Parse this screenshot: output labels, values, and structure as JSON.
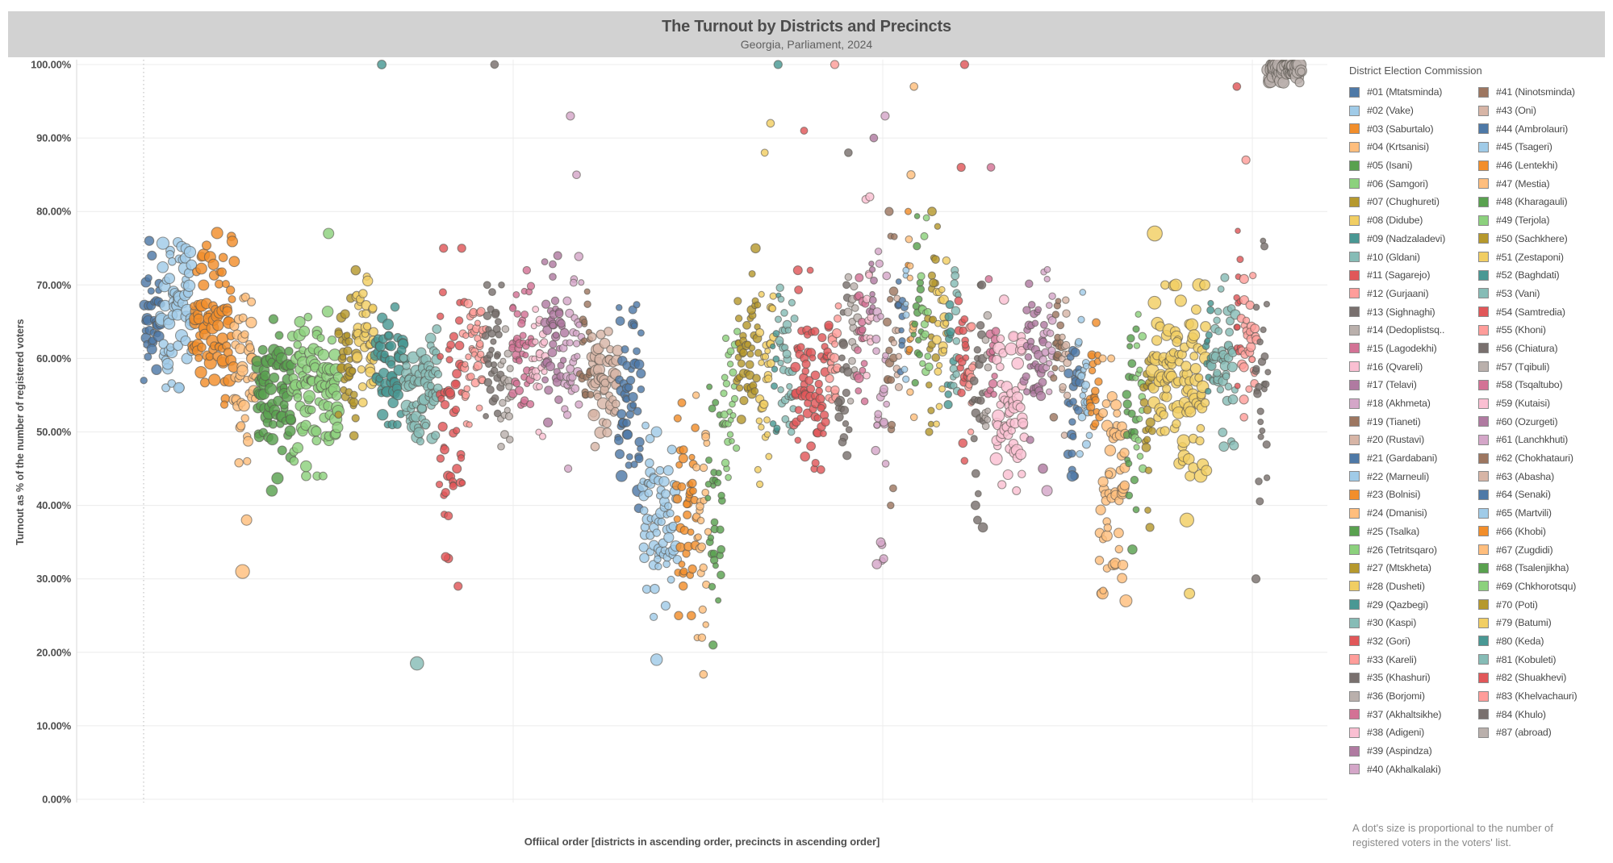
{
  "header": {
    "title": "The Turnout by Districts and Precincts",
    "subtitle": "Georgia, Parliament, 2024"
  },
  "y_axis": {
    "title": "Turnout as % of the number of registered voters",
    "ticks": [
      "100.00%",
      "90.00%",
      "80.00%",
      "70.00%",
      "60.00%",
      "50.00%",
      "40.00%",
      "30.00%",
      "20.00%",
      "10.00%",
      "0.00%"
    ]
  },
  "x_axis": {
    "title": "Offiical order [districts in ascending order, precincts in ascending order]"
  },
  "legend": {
    "title": "District Election Commission",
    "footnote": "A dot's size is proportional to the number of registered voters in the voters' list."
  },
  "palette": [
    "#4E79A7",
    "#A0CBE8",
    "#F28E2B",
    "#FFBE7D",
    "#59A14F",
    "#8CD17D",
    "#B6992D",
    "#F1CE63",
    "#499894",
    "#86BCB6",
    "#E15759",
    "#FF9D9A",
    "#79706E",
    "#BAB0AC",
    "#D37295",
    "#FABFD2",
    "#B07AA1",
    "#D4A6C8",
    "#9D7660",
    "#D7B5A6"
  ],
  "chart_data": {
    "type": "scatter",
    "title": "The Turnout by Districts and Precincts",
    "subtitle": "Georgia, Parliament, 2024",
    "xlabel": "Offiical order [districts in ascending order, precincts in ascending order]",
    "ylabel": "Turnout as % of the number of registered voters",
    "ylim": [
      0,
      100
    ],
    "y_tick_step": 10,
    "grid": true,
    "legend_position": "right",
    "size_note": "A dot's size is proportional to the number of registered voters in the voters' list.",
    "x_encoding": "precincts in official ascending order, grouped by district; one bubble per precinct",
    "districts": [
      {
        "label": "#01 (Mtatsminda)",
        "precincts": 35,
        "mean": 66,
        "sd": 4,
        "min": 57,
        "max": 76,
        "size": 0.55,
        "outliers": []
      },
      {
        "label": "#02 (Vake)",
        "precincts": 65,
        "mean": 67,
        "sd": 4.5,
        "min": 56,
        "max": 78,
        "size": 0.7,
        "outliers": [
          [
            56,
            0.5
          ]
        ]
      },
      {
        "label": "#03 (Saburtalo)",
        "precincts": 85,
        "mean": 65,
        "sd": 5,
        "min": 53,
        "max": 78,
        "size": 0.7,
        "outliers": []
      },
      {
        "label": "#04 (Krtsanisi)",
        "precincts": 45,
        "mean": 58,
        "sd": 6,
        "min": 40,
        "max": 72,
        "size": 0.6,
        "outliers": [
          [
            31,
            0.8
          ],
          [
            38,
            0.5
          ]
        ]
      },
      {
        "label": "#05 (Isani)",
        "precincts": 75,
        "mean": 55,
        "sd": 5,
        "min": 42,
        "max": 66,
        "size": 0.65,
        "outliers": []
      },
      {
        "label": "#06 (Samgori)",
        "precincts": 95,
        "mean": 56,
        "sd": 5,
        "min": 44,
        "max": 70,
        "size": 0.7,
        "outliers": [
          [
            77,
            0.5
          ]
        ]
      },
      {
        "label": "#07 (Chughureti)",
        "precincts": 35,
        "mean": 58,
        "sd": 4.5,
        "min": 48,
        "max": 69,
        "size": 0.5,
        "outliers": [
          [
            72,
            0.4
          ]
        ]
      },
      {
        "label": "#08 (Didube)",
        "precincts": 40,
        "mean": 63,
        "sd": 4,
        "min": 54,
        "max": 73,
        "size": 0.55,
        "outliers": []
      },
      {
        "label": "#09 (Nadzaladevi)",
        "precincts": 60,
        "mean": 59,
        "sd": 3.5,
        "min": 51,
        "max": 67,
        "size": 0.6,
        "outliers": [
          [
            100,
            0.35
          ]
        ]
      },
      {
        "label": "#10 (Gldani)",
        "precincts": 70,
        "mean": 56,
        "sd": 3.5,
        "min": 47,
        "max": 64,
        "size": 0.65,
        "outliers": [
          [
            18.5,
            0.75
          ]
        ]
      },
      {
        "label": "#11 (Sagarejo)",
        "precincts": 50,
        "mean": 55,
        "sd": 8,
        "min": 29,
        "max": 75,
        "size": 0.45,
        "outliers": [
          [
            29,
            0.3
          ],
          [
            33,
            0.35
          ],
          [
            75,
            0.3
          ]
        ]
      },
      {
        "label": "#12 (Gurjaani)",
        "precincts": 45,
        "mean": 60,
        "sd": 5,
        "min": 48,
        "max": 72,
        "size": 0.4,
        "outliers": []
      },
      {
        "label": "#13 (Sighnaghi)",
        "precincts": 32,
        "mean": 61,
        "sd": 4.5,
        "min": 50,
        "max": 70,
        "size": 0.35,
        "outliers": [
          [
            100,
            0.25
          ]
        ]
      },
      {
        "label": "#14 (Dedoplistsq..",
        "precincts": 22,
        "mean": 56,
        "sd": 4,
        "min": 48,
        "max": 64,
        "size": 0.35,
        "outliers": []
      },
      {
        "label": "#15 (Lagodekhi)",
        "precincts": 42,
        "mean": 60,
        "sd": 5,
        "min": 48,
        "max": 72,
        "size": 0.4,
        "outliers": []
      },
      {
        "label": "#16 (Qvareli)",
        "precincts": 25,
        "mean": 59,
        "sd": 4.5,
        "min": 48,
        "max": 68,
        "size": 0.35,
        "outliers": []
      },
      {
        "label": "#17 (Telavi)",
        "precincts": 40,
        "mean": 62,
        "sd": 5,
        "min": 50,
        "max": 74,
        "size": 0.45,
        "outliers": []
      },
      {
        "label": "#18 (Akhmeta)",
        "precincts": 35,
        "mean": 62,
        "sd": 6,
        "min": 45,
        "max": 78,
        "size": 0.4,
        "outliers": [
          [
            93,
            0.3
          ],
          [
            85,
            0.25
          ]
        ]
      },
      {
        "label": "#19 (Tianeti)",
        "precincts": 20,
        "mean": 60,
        "sd": 5,
        "min": 48,
        "max": 70,
        "size": 0.3,
        "outliers": []
      },
      {
        "label": "#20 (Rustavi)",
        "precincts": 55,
        "mean": 57,
        "sd": 4,
        "min": 48,
        "max": 66,
        "size": 0.65,
        "outliers": []
      },
      {
        "label": "#21 (Gardabani)",
        "precincts": 50,
        "mean": 55,
        "sd": 6,
        "min": 38,
        "max": 68,
        "size": 0.5,
        "outliers": [
          [
            42,
            0.6
          ],
          [
            44,
            0.55
          ]
        ]
      },
      {
        "label": "#22 (Marneuli)",
        "precincts": 70,
        "mean": 38,
        "sd": 6,
        "min": 24,
        "max": 52,
        "size": 0.55,
        "outliers": [
          [
            19,
            0.6
          ],
          [
            50,
            0.5
          ]
        ]
      },
      {
        "label": "#23 (Bolnisi)",
        "precincts": 40,
        "mean": 40,
        "sd": 7,
        "min": 25,
        "max": 55,
        "size": 0.45,
        "outliers": []
      },
      {
        "label": "#24 (Dmanisi)",
        "precincts": 25,
        "mean": 38,
        "sd": 8,
        "min": 22,
        "max": 55,
        "size": 0.4,
        "outliers": [
          [
            17,
            0.25
          ]
        ]
      },
      {
        "label": "#25 (Tsalka)",
        "precincts": 30,
        "mean": 42,
        "sd": 8,
        "min": 25,
        "max": 60,
        "size": 0.35,
        "outliers": [
          [
            21,
            0.3
          ]
        ]
      },
      {
        "label": "#26 (Tetritsqaro)",
        "precincts": 28,
        "mean": 53,
        "sd": 6,
        "min": 40,
        "max": 66,
        "size": 0.35,
        "outliers": []
      },
      {
        "label": "#27 (Mtskheta)",
        "precincts": 45,
        "mean": 62,
        "sd": 5,
        "min": 50,
        "max": 74,
        "size": 0.45,
        "outliers": [
          [
            75,
            0.4
          ]
        ]
      },
      {
        "label": "#28 (Dusheti)",
        "precincts": 32,
        "mean": 57,
        "sd": 7,
        "min": 40,
        "max": 72,
        "size": 0.4,
        "outliers": [
          [
            92,
            0.25
          ],
          [
            88,
            0.2
          ]
        ]
      },
      {
        "label": "#29 (Qazbegi)",
        "precincts": 10,
        "mean": 58,
        "sd": 6,
        "min": 48,
        "max": 70,
        "size": 0.25,
        "outliers": [
          [
            100,
            0.3
          ]
        ]
      },
      {
        "label": "#30 (Kaspi)",
        "precincts": 32,
        "mean": 60,
        "sd": 4.5,
        "min": 50,
        "max": 70,
        "size": 0.4,
        "outliers": []
      },
      {
        "label": "#32 (Gori)",
        "precincts": 70,
        "mean": 58,
        "sd": 6,
        "min": 44,
        "max": 72,
        "size": 0.5,
        "outliers": [
          [
            91,
            0.2
          ]
        ]
      },
      {
        "label": "#33 (Kareli)",
        "precincts": 21,
        "mean": 59,
        "sd": 5,
        "min": 48,
        "max": 70,
        "size": 0.45,
        "outliers": [
          [
            100,
            0.3
          ]
        ]
      },
      {
        "label": "#35 (Khashuri)",
        "precincts": 21,
        "mean": 57,
        "sd": 6,
        "min": 42,
        "max": 70,
        "size": 0.45,
        "outliers": [
          [
            88,
            0.25
          ]
        ]
      },
      {
        "label": "#36 (Borjomi)",
        "precincts": 16,
        "mean": 62,
        "sd": 5,
        "min": 52,
        "max": 74,
        "size": 0.4,
        "outliers": []
      },
      {
        "label": "#37 (Akhaltsikhe)",
        "precincts": 18,
        "mean": 64,
        "sd": 5.5,
        "min": 52,
        "max": 78,
        "size": 0.45,
        "outliers": []
      },
      {
        "label": "#38 (Adigeni)",
        "precincts": 11,
        "mean": 68,
        "sd": 6,
        "min": 55,
        "max": 82,
        "size": 0.35,
        "outliers": [
          [
            82,
            0.3
          ]
        ]
      },
      {
        "label": "#39 (Aspindza)",
        "precincts": 8,
        "mean": 65,
        "sd": 6,
        "min": 52,
        "max": 78,
        "size": 0.3,
        "outliers": [
          [
            90,
            0.25
          ]
        ]
      },
      {
        "label": "#40 (Akhalkalaki)",
        "precincts": 25,
        "mean": 55,
        "sd": 12,
        "min": 30,
        "max": 85,
        "size": 0.4,
        "outliers": [
          [
            93,
            0.3
          ],
          [
            32,
            0.4
          ],
          [
            35,
            0.35
          ]
        ]
      },
      {
        "label": "#41 (Ninotsminda)",
        "precincts": 16,
        "mean": 60,
        "sd": 10,
        "min": 40,
        "max": 82,
        "size": 0.4,
        "outliers": [
          [
            80,
            0.3
          ]
        ]
      },
      {
        "label": "#43 (Oni)",
        "precincts": 8,
        "mean": 64,
        "sd": 5,
        "min": 54,
        "max": 75,
        "size": 0.3,
        "outliers": []
      },
      {
        "label": "#44 (Ambrolauri)",
        "precincts": 11,
        "mean": 64,
        "sd": 5,
        "min": 54,
        "max": 76,
        "size": 0.3,
        "outliers": []
      },
      {
        "label": "#45 (Tsageri)",
        "precincts": 7,
        "mean": 62,
        "sd": 5,
        "min": 52,
        "max": 72,
        "size": 0.3,
        "outliers": []
      },
      {
        "label": "#46 (Lentekhi)",
        "precincts": 5,
        "mean": 68,
        "sd": 6,
        "min": 56,
        "max": 80,
        "size": 0.25,
        "outliers": []
      },
      {
        "label": "#47 (Mestia)",
        "precincts": 9,
        "mean": 66,
        "sd": 7,
        "min": 52,
        "max": 80,
        "size": 0.3,
        "outliers": [
          [
            97,
            0.25
          ],
          [
            85,
            0.3
          ]
        ]
      },
      {
        "label": "#48 (Kharagauli)",
        "precincts": 14,
        "mean": 66,
        "sd": 6,
        "min": 54,
        "max": 80,
        "size": 0.35,
        "outliers": []
      },
      {
        "label": "#49 (Terjola)",
        "precincts": 14,
        "mean": 66,
        "sd": 6,
        "min": 54,
        "max": 80,
        "size": 0.4,
        "outliers": []
      },
      {
        "label": "#50 (Sachkhere)",
        "precincts": 18,
        "mean": 65,
        "sd": 7,
        "min": 50,
        "max": 80,
        "size": 0.4,
        "outliers": [
          [
            80,
            0.35
          ]
        ]
      },
      {
        "label": "#51 (Zestaponi)",
        "precincts": 21,
        "mean": 62,
        "sd": 6,
        "min": 48,
        "max": 76,
        "size": 0.45,
        "outliers": []
      },
      {
        "label": "#52 (Baghdati)",
        "precincts": 11,
        "mean": 61,
        "sd": 5,
        "min": 50,
        "max": 72,
        "size": 0.4,
        "outliers": []
      },
      {
        "label": "#53 (Vani)",
        "precincts": 13,
        "mean": 61,
        "sd": 5,
        "min": 50,
        "max": 72,
        "size": 0.4,
        "outliers": []
      },
      {
        "label": "#54 (Samtredia)",
        "precincts": 19,
        "mean": 59,
        "sd": 6,
        "min": 45,
        "max": 72,
        "size": 0.45,
        "outliers": [
          [
            100,
            0.3
          ],
          [
            86,
            0.3
          ]
        ]
      },
      {
        "label": "#55 (Khoni)",
        "precincts": 11,
        "mean": 60,
        "sd": 5,
        "min": 50,
        "max": 72,
        "size": 0.4,
        "outliers": []
      },
      {
        "label": "#56 (Chiatura)",
        "precincts": 21,
        "mean": 55,
        "sd": 7,
        "min": 38,
        "max": 70,
        "size": 0.45,
        "outliers": [
          [
            37,
            0.4
          ],
          [
            40,
            0.35
          ]
        ]
      },
      {
        "label": "#57 (Tqibuli)",
        "precincts": 11,
        "mean": 58,
        "sd": 5,
        "min": 47,
        "max": 68,
        "size": 0.35,
        "outliers": []
      },
      {
        "label": "#58 (Tsqaltubo)",
        "precincts": 14,
        "mean": 60,
        "sd": 5.5,
        "min": 48,
        "max": 72,
        "size": 0.45,
        "outliers": [
          [
            86,
            0.25
          ]
        ]
      },
      {
        "label": "#59 (Kutaisi)",
        "precincts": 60,
        "mean": 53,
        "sd": 4.5,
        "min": 42,
        "max": 63,
        "size": 0.7,
        "outliers": [
          [
            68,
            0.4
          ]
        ]
      },
      {
        "label": "#60 (Ozurgeti)",
        "precincts": 38,
        "mean": 61,
        "sd": 5.5,
        "min": 48,
        "max": 73,
        "size": 0.45,
        "outliers": [
          [
            45,
            0.4
          ]
        ]
      },
      {
        "label": "#61 (Lanchkhuti)",
        "precincts": 20,
        "mean": 62,
        "sd": 5,
        "min": 50,
        "max": 73,
        "size": 0.4,
        "outliers": [
          [
            42,
            0.5
          ]
        ]
      },
      {
        "label": "#62 (Chokhatauri)",
        "precincts": 16,
        "mean": 62,
        "sd": 5,
        "min": 52,
        "max": 73,
        "size": 0.35,
        "outliers": []
      },
      {
        "label": "#63 (Abasha)",
        "precincts": 14,
        "mean": 58,
        "sd": 5,
        "min": 48,
        "max": 68,
        "size": 0.35,
        "outliers": []
      },
      {
        "label": "#64 (Senaki)",
        "precincts": 22,
        "mean": 56,
        "sd": 5.5,
        "min": 44,
        "max": 68,
        "size": 0.45,
        "outliers": [
          [
            44,
            0.5
          ]
        ]
      },
      {
        "label": "#65 (Martvili)",
        "precincts": 22,
        "mean": 58,
        "sd": 5,
        "min": 47,
        "max": 69,
        "size": 0.4,
        "outliers": []
      },
      {
        "label": "#66 (Khobi)",
        "precincts": 20,
        "mean": 57,
        "sd": 5,
        "min": 46,
        "max": 68,
        "size": 0.4,
        "outliers": []
      },
      {
        "label": "#67 (Zugdidi)",
        "precincts": 55,
        "mean": 44,
        "sd": 8,
        "min": 28,
        "max": 60,
        "size": 0.6,
        "outliers": [
          [
            27,
            0.65
          ]
        ]
      },
      {
        "label": "#68 (Tsalenjikha)",
        "precincts": 20,
        "mean": 52,
        "sd": 7,
        "min": 34,
        "max": 64,
        "size": 0.4,
        "outliers": [
          [
            34,
            0.4
          ]
        ]
      },
      {
        "label": "#69 (Chkhorotsqu)",
        "precincts": 16,
        "mean": 56,
        "sd": 5,
        "min": 45,
        "max": 66,
        "size": 0.35,
        "outliers": []
      },
      {
        "label": "#70 (Poti)",
        "precincts": 18,
        "mean": 52,
        "sd": 5.5,
        "min": 38,
        "max": 62,
        "size": 0.45,
        "outliers": [
          [
            37,
            0.3
          ]
        ]
      },
      {
        "label": "#79 (Batumi)",
        "precincts": 110,
        "mean": 57,
        "sd": 5.5,
        "min": 44,
        "max": 70,
        "size": 0.75,
        "outliers": [
          [
            38,
            0.8
          ],
          [
            77,
            0.9
          ],
          [
            28,
            0.5
          ]
        ]
      },
      {
        "label": "#80 (Keda)",
        "precincts": 12,
        "mean": 62,
        "sd": 5,
        "min": 52,
        "max": 72,
        "size": 0.3,
        "outliers": []
      },
      {
        "label": "#81 (Kobuleti)",
        "precincts": 48,
        "mean": 60,
        "sd": 5,
        "min": 48,
        "max": 71,
        "size": 0.5,
        "outliers": []
      },
      {
        "label": "#82 (Shuakhevi)",
        "precincts": 12,
        "mean": 65,
        "sd": 6,
        "min": 52,
        "max": 78,
        "size": 0.25,
        "outliers": [
          [
            97,
            0.25
          ]
        ]
      },
      {
        "label": "#83 (Khelvachauri)",
        "precincts": 30,
        "mean": 62,
        "sd": 5,
        "min": 52,
        "max": 73,
        "size": 0.45,
        "outliers": [
          [
            87,
            0.3
          ]
        ]
      },
      {
        "label": "#84 (Khulo)",
        "precincts": 25,
        "mean": 58,
        "sd": 9,
        "min": 35,
        "max": 76,
        "size": 0.35,
        "outliers": [
          [
            30,
            0.3
          ]
        ]
      },
      {
        "label": "#87 (abroad)",
        "precincts": 67,
        "mean": 99.3,
        "sd": 0.7,
        "min": 97,
        "max": 100,
        "size": 0.8,
        "outliers": []
      }
    ]
  }
}
